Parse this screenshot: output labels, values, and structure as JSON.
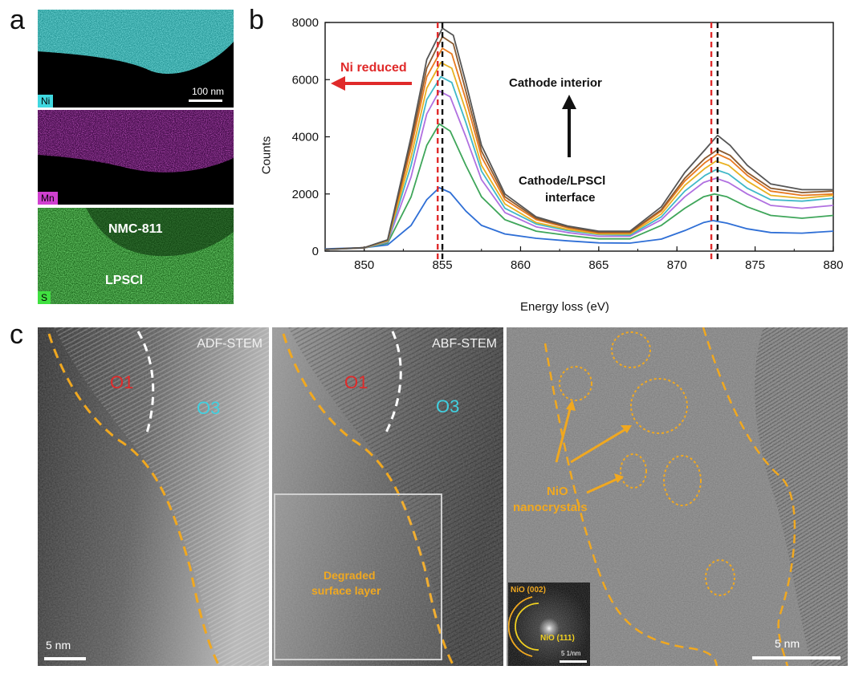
{
  "panel_a": {
    "letter": "a",
    "maps": [
      {
        "tag": "Ni",
        "scale_bar_label": "100 nm"
      },
      {
        "tag": "Mn"
      },
      {
        "tag": "S",
        "labels": [
          "NMC-811",
          "LPSCl"
        ]
      }
    ]
  },
  "panel_b": {
    "letter": "b",
    "annotations": {
      "ni_reduced": "Ni reduced",
      "cathode_interior": "Cathode interior",
      "interface_line1": "Cathode/LPSCl",
      "interface_line2": "interface"
    }
  },
  "chart_data": {
    "type": "line",
    "xlabel": "Energy loss (eV)",
    "ylabel": "Counts",
    "xlim": [
      847.5,
      880
    ],
    "ylim": [
      0,
      8000
    ],
    "xticks": [
      850,
      855,
      860,
      865,
      870,
      875,
      880
    ],
    "yticks": [
      0,
      2000,
      4000,
      6000,
      8000
    ],
    "reference_lines": [
      {
        "x": 854.7,
        "color": "#e02a2a",
        "style": "dashed"
      },
      {
        "x": 855.0,
        "color": "#111111",
        "style": "dashed"
      },
      {
        "x": 872.2,
        "color": "#e02a2a",
        "style": "dashed"
      },
      {
        "x": 872.6,
        "color": "#111111",
        "style": "dashed"
      }
    ],
    "series": [
      {
        "color": "#2f6fd6",
        "values": [
          [
            847.5,
            80
          ],
          [
            850,
            120
          ],
          [
            851.5,
            220
          ],
          [
            853,
            900
          ],
          [
            854,
            1800
          ],
          [
            854.8,
            2220
          ],
          [
            855.5,
            2050
          ],
          [
            856.5,
            1400
          ],
          [
            857.5,
            900
          ],
          [
            859,
            600
          ],
          [
            861,
            450
          ],
          [
            863,
            360
          ],
          [
            865,
            290
          ],
          [
            867,
            280
          ],
          [
            869,
            420
          ],
          [
            870.5,
            720
          ],
          [
            871.7,
            1000
          ],
          [
            872.3,
            1070
          ],
          [
            873.2,
            980
          ],
          [
            874.5,
            780
          ],
          [
            876,
            650
          ],
          [
            878,
            630
          ],
          [
            880,
            700
          ]
        ]
      },
      {
        "color": "#3fa65a",
        "values": [
          [
            847.5,
            60
          ],
          [
            850,
            110
          ],
          [
            851.5,
            280
          ],
          [
            853,
            1900
          ],
          [
            854,
            3700
          ],
          [
            854.8,
            4450
          ],
          [
            855.5,
            4200
          ],
          [
            856.5,
            3000
          ],
          [
            857.5,
            1900
          ],
          [
            859,
            1100
          ],
          [
            861,
            700
          ],
          [
            863,
            550
          ],
          [
            865,
            430
          ],
          [
            867,
            430
          ],
          [
            869,
            900
          ],
          [
            870.5,
            1500
          ],
          [
            871.7,
            1900
          ],
          [
            872.4,
            2000
          ],
          [
            873.2,
            1900
          ],
          [
            874.5,
            1550
          ],
          [
            876,
            1250
          ],
          [
            878,
            1150
          ],
          [
            880,
            1250
          ]
        ]
      },
      {
        "color": "#b070e0",
        "values": [
          [
            847.5,
            60
          ],
          [
            850,
            110
          ],
          [
            851.5,
            320
          ],
          [
            853,
            2600
          ],
          [
            854,
            4800
          ],
          [
            854.8,
            5600
          ],
          [
            855.5,
            5400
          ],
          [
            856.5,
            4000
          ],
          [
            857.5,
            2500
          ],
          [
            859,
            1350
          ],
          [
            861,
            850
          ],
          [
            863,
            650
          ],
          [
            865,
            520
          ],
          [
            867,
            520
          ],
          [
            869,
            1100
          ],
          [
            870.5,
            1900
          ],
          [
            871.7,
            2400
          ],
          [
            872.5,
            2550
          ],
          [
            873.3,
            2400
          ],
          [
            874.5,
            2000
          ],
          [
            876,
            1600
          ],
          [
            878,
            1500
          ],
          [
            880,
            1600
          ]
        ]
      },
      {
        "color": "#40b8c8",
        "values": [
          [
            847.5,
            60
          ],
          [
            850,
            115
          ],
          [
            851.5,
            340
          ],
          [
            853,
            3000
          ],
          [
            854,
            5300
          ],
          [
            854.9,
            6100
          ],
          [
            855.6,
            5900
          ],
          [
            856.5,
            4500
          ],
          [
            857.5,
            2800
          ],
          [
            859,
            1500
          ],
          [
            861,
            950
          ],
          [
            863,
            720
          ],
          [
            865,
            580
          ],
          [
            867,
            560
          ],
          [
            869,
            1200
          ],
          [
            870.5,
            2100
          ],
          [
            871.8,
            2650
          ],
          [
            872.5,
            2850
          ],
          [
            873.3,
            2700
          ],
          [
            874.5,
            2200
          ],
          [
            876,
            1800
          ],
          [
            878,
            1750
          ],
          [
            880,
            1850
          ]
        ]
      },
      {
        "color": "#e8b020",
        "values": [
          [
            847.5,
            60
          ],
          [
            850,
            115
          ],
          [
            851.5,
            360
          ],
          [
            853,
            3300
          ],
          [
            854,
            5700
          ],
          [
            854.9,
            6600
          ],
          [
            855.6,
            6400
          ],
          [
            856.5,
            4900
          ],
          [
            857.5,
            3000
          ],
          [
            859,
            1650
          ],
          [
            861,
            1000
          ],
          [
            863,
            760
          ],
          [
            865,
            600
          ],
          [
            867,
            600
          ],
          [
            869,
            1300
          ],
          [
            870.5,
            2300
          ],
          [
            871.8,
            2900
          ],
          [
            872.5,
            3150
          ],
          [
            873.3,
            3000
          ],
          [
            874.5,
            2450
          ],
          [
            876,
            1950
          ],
          [
            878,
            1850
          ],
          [
            880,
            1950
          ]
        ]
      },
      {
        "color": "#e87a20",
        "values": [
          [
            847.5,
            60
          ],
          [
            850,
            120
          ],
          [
            851.5,
            380
          ],
          [
            853,
            3600
          ],
          [
            854,
            6100
          ],
          [
            855.0,
            7100
          ],
          [
            855.6,
            6900
          ],
          [
            856.5,
            5300
          ],
          [
            857.5,
            3300
          ],
          [
            859,
            1800
          ],
          [
            861,
            1100
          ],
          [
            863,
            820
          ],
          [
            865,
            640
          ],
          [
            867,
            640
          ],
          [
            869,
            1400
          ],
          [
            870.5,
            2450
          ],
          [
            871.8,
            3100
          ],
          [
            872.6,
            3400
          ],
          [
            873.4,
            3200
          ],
          [
            874.5,
            2650
          ],
          [
            876,
            2100
          ],
          [
            878,
            1950
          ],
          [
            880,
            2000
          ]
        ]
      },
      {
        "color": "#8a5a30",
        "values": [
          [
            847.5,
            60
          ],
          [
            850,
            120
          ],
          [
            851.5,
            390
          ],
          [
            853,
            3800
          ],
          [
            854,
            6400
          ],
          [
            855.0,
            7500
          ],
          [
            855.7,
            7250
          ],
          [
            856.5,
            5600
          ],
          [
            857.5,
            3500
          ],
          [
            859,
            1900
          ],
          [
            861,
            1150
          ],
          [
            863,
            850
          ],
          [
            865,
            660
          ],
          [
            867,
            660
          ],
          [
            869,
            1450
          ],
          [
            870.5,
            2550
          ],
          [
            871.8,
            3250
          ],
          [
            872.6,
            3550
          ],
          [
            873.4,
            3350
          ],
          [
            874.5,
            2750
          ],
          [
            876,
            2200
          ],
          [
            878,
            2050
          ],
          [
            880,
            2100
          ]
        ]
      },
      {
        "color": "#555555",
        "values": [
          [
            847.5,
            60
          ],
          [
            850,
            120
          ],
          [
            851.5,
            400
          ],
          [
            853,
            4000
          ],
          [
            854,
            6700
          ],
          [
            855.0,
            7800
          ],
          [
            855.7,
            7550
          ],
          [
            856.5,
            5900
          ],
          [
            857.5,
            3700
          ],
          [
            859,
            2000
          ],
          [
            861,
            1200
          ],
          [
            863,
            880
          ],
          [
            865,
            700
          ],
          [
            867,
            700
          ],
          [
            869,
            1550
          ],
          [
            870.5,
            2750
          ],
          [
            871.8,
            3550
          ],
          [
            872.6,
            4050
          ],
          [
            873.4,
            3700
          ],
          [
            874.5,
            3000
          ],
          [
            876,
            2350
          ],
          [
            878,
            2150
          ],
          [
            880,
            2150
          ]
        ]
      }
    ]
  },
  "panel_c": {
    "letter": "c",
    "adf": {
      "title": "ADF-STEM",
      "phase1": "O1",
      "phase2": "O3",
      "scale_bar_label": "5 nm"
    },
    "abf": {
      "title": "ABF-STEM",
      "phase1": "O1",
      "phase2": "O3",
      "box_label_line1": "Degraded",
      "box_label_line2": "surface layer"
    },
    "hrtem": {
      "label_line1": "NiO",
      "label_line2": "nanocrystals",
      "scale_bar_label": "5 nm",
      "fft": {
        "ring1": "NiO (002)",
        "ring2": "NiO (111)",
        "scale_bar_label": "5 1/nm"
      }
    }
  },
  "colors": {
    "ni": "#3fd0d0",
    "mn": "#c030c0",
    "s": "#40d040",
    "boundary": "#f0a820",
    "annotation_red": "#e02a2a",
    "phase_cyan": "#40d0e0"
  }
}
